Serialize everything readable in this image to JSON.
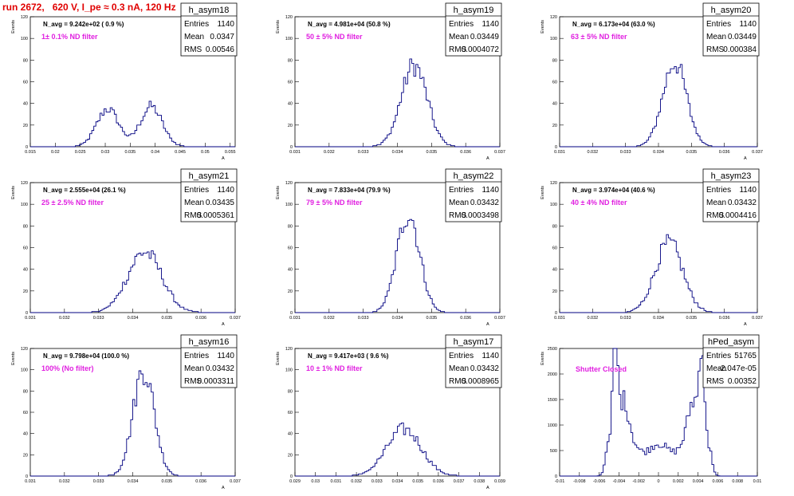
{
  "title": "run 2672,   620 V, I_pe ≈ 0.3 nA, 120 Hz",
  "colors": {
    "histogram": "#000080",
    "title": "#e00000",
    "annotation": "#e020e0"
  },
  "chart_data": [
    {
      "type": "histogram",
      "name": "h_asym18",
      "navg": "N_avg = 9.242e+02 ( 0.9 %)",
      "filter": "1± 0.1% ND filter",
      "stats": {
        "Entries": "1140",
        "Mean": "0.0347",
        "RMS": "0.00546"
      },
      "xlim": [
        0.015,
        0.056
      ],
      "ylim": [
        0,
        120
      ],
      "xticks": [
        "0.015",
        "0.02",
        "0.025",
        "0.03",
        "0.035",
        "0.04",
        "0.045",
        "0.05",
        "0.055"
      ],
      "yticks": [
        "0",
        "20",
        "40",
        "60",
        "80",
        "100",
        "120"
      ],
      "ylabel": "Events",
      "xlabel": "A",
      "peaks": [
        {
          "mu": 0.0305,
          "sigma": 0.0022,
          "amp": 35
        },
        {
          "mu": 0.0392,
          "sigma": 0.0022,
          "amp": 37
        }
      ],
      "range": [
        0.024,
        0.048
      ]
    },
    {
      "type": "histogram",
      "name": "h_asym19",
      "navg": "N_avg = 4.981e+04 (50.8 %)",
      "filter": "50 ± 5% ND filter",
      "stats": {
        "Entries": "1140",
        "Mean": "0.03449",
        "RMS": "0.0004072"
      },
      "xlim": [
        0.031,
        0.037
      ],
      "ylim": [
        0,
        120
      ],
      "xticks": [
        "0.031",
        "0.032",
        "0.033",
        "0.034",
        "0.035",
        "0.036",
        "0.037"
      ],
      "yticks": [
        "0",
        "20",
        "40",
        "60",
        "80",
        "100",
        "120"
      ],
      "ylabel": "Events",
      "xlabel": "A",
      "peaks": [
        {
          "mu": 0.03449,
          "sigma": 0.00038,
          "amp": 75
        }
      ],
      "range": [
        0.0328,
        0.0362
      ]
    },
    {
      "type": "histogram",
      "name": "h_asym20",
      "navg": "N_avg = 6.173e+04 (63.0 %)",
      "filter": "63 ± 5% ND filter",
      "stats": {
        "Entries": "1140",
        "Mean": "0.03449",
        "RMS": "0.000384"
      },
      "xlim": [
        0.031,
        0.037
      ],
      "ylim": [
        0,
        120
      ],
      "xticks": [
        "0.031",
        "0.032",
        "0.033",
        "0.034",
        "0.035",
        "0.036",
        "0.037"
      ],
      "yticks": [
        "0",
        "20",
        "40",
        "60",
        "80",
        "100",
        "120"
      ],
      "ylabel": "Events",
      "xlabel": "A",
      "peaks": [
        {
          "mu": 0.03449,
          "sigma": 0.00036,
          "amp": 78
        }
      ],
      "range": [
        0.0328,
        0.0362
      ]
    },
    {
      "type": "histogram",
      "name": "h_asym21",
      "navg": "N_avg = 2.555e+04 (26.1 %)",
      "filter": "25 ± 2.5% ND filter",
      "stats": {
        "Entries": "1140",
        "Mean": "0.03435",
        "RMS": "0.0005361"
      },
      "xlim": [
        0.031,
        0.037
      ],
      "ylim": [
        0,
        120
      ],
      "xticks": [
        "0.031",
        "0.032",
        "0.033",
        "0.034",
        "0.035",
        "0.036",
        "0.037"
      ],
      "yticks": [
        "0",
        "20",
        "40",
        "60",
        "80",
        "100",
        "120"
      ],
      "ylabel": "Events",
      "xlabel": "A",
      "peaks": [
        {
          "mu": 0.03435,
          "sigma": 0.0005,
          "amp": 56
        }
      ],
      "range": [
        0.0325,
        0.0365
      ]
    },
    {
      "type": "histogram",
      "name": "h_asym22",
      "navg": "N_avg = 7.833e+04 (79.9 %)",
      "filter": "79 ± 5% ND filter",
      "stats": {
        "Entries": "1140",
        "Mean": "0.03432",
        "RMS": "0.0003498"
      },
      "xlim": [
        0.031,
        0.037
      ],
      "ylim": [
        0,
        120
      ],
      "xticks": [
        "0.031",
        "0.032",
        "0.033",
        "0.034",
        "0.035",
        "0.036",
        "0.037"
      ],
      "yticks": [
        "0",
        "20",
        "40",
        "60",
        "80",
        "100",
        "120"
      ],
      "ylabel": "Events",
      "xlabel": "A",
      "peaks": [
        {
          "mu": 0.03432,
          "sigma": 0.00033,
          "amp": 92
        }
      ],
      "range": [
        0.0328,
        0.0362
      ]
    },
    {
      "type": "histogram",
      "name": "h_asym23",
      "navg": "N_avg = 3.974e+04 (40.6 %)",
      "filter": "40 ± 4% ND filter",
      "stats": {
        "Entries": "1140",
        "Mean": "0.03432",
        "RMS": "0.0004416"
      },
      "xlim": [
        0.031,
        0.037
      ],
      "ylim": [
        0,
        120
      ],
      "xticks": [
        "0.031",
        "0.032",
        "0.033",
        "0.034",
        "0.035",
        "0.036",
        "0.037"
      ],
      "yticks": [
        "0",
        "20",
        "40",
        "60",
        "80",
        "100",
        "120"
      ],
      "ylabel": "Events",
      "xlabel": "A",
      "peaks": [
        {
          "mu": 0.03432,
          "sigma": 0.00042,
          "amp": 64
        }
      ],
      "range": [
        0.0328,
        0.0362
      ]
    },
    {
      "type": "histogram",
      "name": "h_asym16",
      "navg": "N_avg = 9.798e+04 (100.0 %)",
      "filter": "100% (No filter)",
      "stats": {
        "Entries": "1140",
        "Mean": "0.03432",
        "RMS": "0.0003311"
      },
      "xlim": [
        0.031,
        0.037
      ],
      "ylim": [
        0,
        120
      ],
      "xticks": [
        "0.031",
        "0.032",
        "0.033",
        "0.034",
        "0.035",
        "0.036",
        "0.037"
      ],
      "yticks": [
        "0",
        "20",
        "40",
        "60",
        "80",
        "100",
        "120"
      ],
      "ylabel": "Events",
      "xlabel": "A",
      "peaks": [
        {
          "mu": 0.03432,
          "sigma": 0.00031,
          "amp": 100
        }
      ],
      "range": [
        0.0328,
        0.0362
      ]
    },
    {
      "type": "histogram",
      "name": "h_asym17",
      "navg": "N_avg = 9.417e+03 ( 9.6 %)",
      "filter": "10 ± 1% ND filter",
      "stats": {
        "Entries": "1140",
        "Mean": "0.03432",
        "RMS": "0.0008965"
      },
      "xlim": [
        0.029,
        0.039
      ],
      "ylim": [
        0,
        120
      ],
      "xticks": [
        "0.029",
        "0.03",
        "0.031",
        "0.032",
        "0.033",
        "0.034",
        "0.035",
        "0.036",
        "0.037",
        "0.038",
        "0.039"
      ],
      "yticks": [
        "0",
        "20",
        "40",
        "60",
        "80",
        "100",
        "120"
      ],
      "ylabel": "Events",
      "xlabel": "A",
      "peaks": [
        {
          "mu": 0.03432,
          "sigma": 0.00085,
          "amp": 44
        }
      ],
      "range": [
        0.0312,
        0.0375
      ]
    },
    {
      "type": "histogram",
      "name": "hPed_asym",
      "navg": "",
      "filter": "Shutter Closed",
      "stats": {
        "Entries": "51765",
        "Mean": "-2.047e-05",
        "RMS": "0.00352"
      },
      "xlim": [
        -0.01,
        0.01
      ],
      "ylim": [
        0,
        2500
      ],
      "xticks": [
        "-0.01",
        "-0.008",
        "-0.006",
        "-0.004",
        "-0.002",
        "0",
        "0.002",
        "0.004",
        "0.006",
        "0.008",
        "0.01"
      ],
      "yticks": [
        "0",
        "500",
        "1000",
        "1500",
        "2000",
        "2500"
      ],
      "ylabel": "Events",
      "xlabel": "",
      "ped": true,
      "range": [
        -0.0062,
        0.0062
      ]
    }
  ]
}
